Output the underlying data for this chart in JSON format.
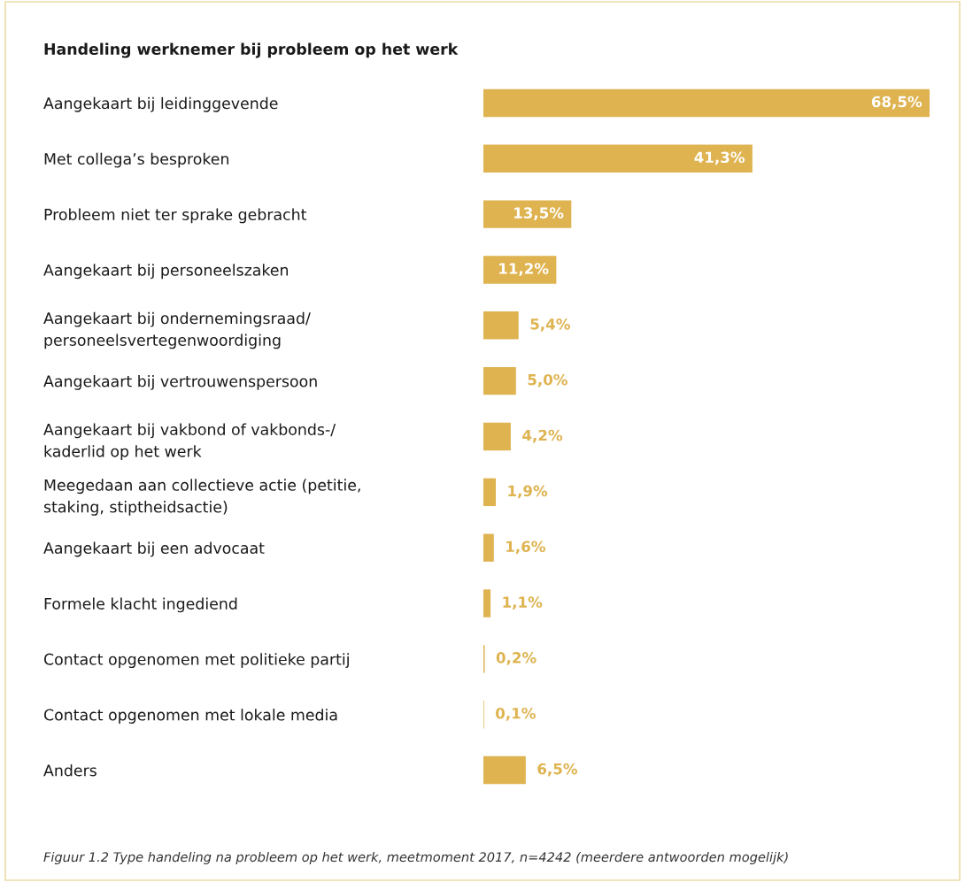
{
  "chart_data": {
    "type": "bar",
    "orientation": "horizontal",
    "title": "Handeling werknemer bij probleem op het werk",
    "categories": [
      "Aangekaart bij leidinggevende",
      "Met collega’s besproken",
      "Probleem niet ter sprake gebracht",
      "Aangekaart bij personeelszaken",
      "Aangekaart bij ondernemingsraad/\npersoneelsvertegenwoordiging",
      "Aangekaart bij vertrouwenspersoon",
      "Aangekaart bij vakbond of vakbonds-/\nkaderlid op het werk",
      "Meegedaan aan collectieve actie (petitie,\nstaking, stiptheidsactie)",
      "Aangekaart bij een advocaat",
      "Formele klacht ingediend",
      "Contact opgenomen met politieke partij",
      "Contact opgenomen met lokale media",
      "Anders"
    ],
    "values": [
      68.5,
      41.3,
      13.5,
      11.2,
      5.4,
      5.0,
      4.2,
      1.9,
      1.6,
      1.1,
      0.2,
      0.1,
      6.5
    ],
    "value_labels": [
      "68,5%",
      "41,3%",
      "13,5%",
      "11,2%",
      "5,4%",
      "5,0%",
      "4,2%",
      "1,9%",
      "1,6%",
      "1,1%",
      "0,2%",
      "0,1%",
      "6,5%"
    ],
    "color": "#deb350",
    "annotations": [
      "Figuur 1.2 Type handeling na probleem op het werk, meetmoment 2017, n=4242 (meerdere antwoorden mogelijk)"
    ]
  }
}
